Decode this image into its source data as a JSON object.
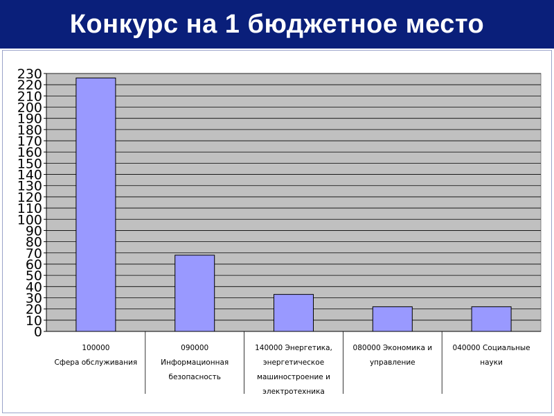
{
  "header": {
    "title": "Конкурс на 1 бюджетное место",
    "background_color": "#0a1f7a",
    "text_color": "#ffffff"
  },
  "chart_data": {
    "type": "bar",
    "title": "",
    "xlabel": "",
    "ylabel": "",
    "ylim": [
      0,
      230
    ],
    "yticks": [
      0,
      10,
      20,
      30,
      40,
      50,
      60,
      70,
      80,
      90,
      100,
      110,
      120,
      130,
      140,
      150,
      160,
      170,
      180,
      190,
      200,
      210,
      220,
      230
    ],
    "grid": true,
    "legend": "none",
    "bar_color": "#9999ff",
    "plot_background": "#c0c0c0",
    "categories": [
      [
        "100000",
        "Сфера обслуживания"
      ],
      [
        "090000",
        "Информационная",
        "безопасность"
      ],
      [
        "140000 Энергетика,",
        "энергетическое",
        "машиностроение и",
        "электротехника"
      ],
      [
        "080000 Экономика и",
        "управление"
      ],
      [
        "040000 Социальные",
        "науки"
      ]
    ],
    "values": [
      226,
      68,
      33,
      22,
      22
    ]
  }
}
